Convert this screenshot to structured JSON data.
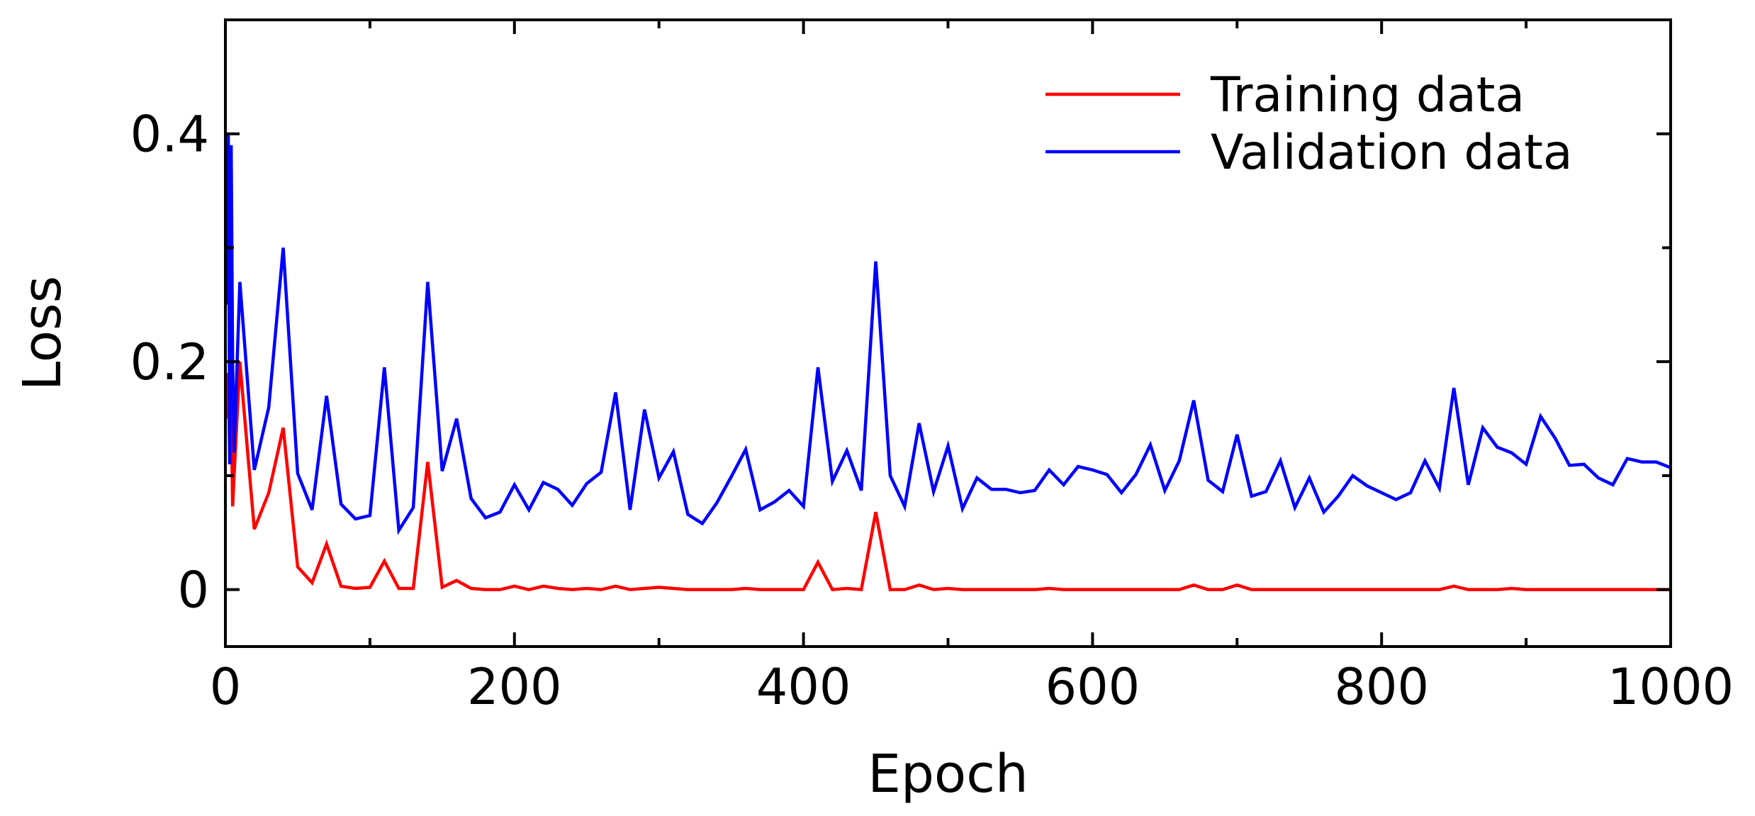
{
  "chart_data": {
    "type": "line",
    "title": "",
    "xlabel": "Epoch",
    "ylabel": "Loss",
    "xlim": [
      0,
      1000
    ],
    "ylim": [
      -0.05,
      0.5
    ],
    "xticks": [
      0,
      200,
      400,
      600,
      800,
      1000
    ],
    "xtick_labels": [
      "0",
      "200",
      "400",
      "600",
      "800",
      "1000"
    ],
    "yticks": [
      0,
      0.2,
      0.4
    ],
    "ytick_labels": [
      "0",
      "0.2",
      "0.4"
    ],
    "grid": false,
    "legend_position": "top-right",
    "series": [
      {
        "name": "Training data",
        "color": "#ff0000",
        "x": [
          1,
          2,
          3,
          4,
          5,
          6,
          10,
          20,
          30,
          40,
          50,
          60,
          70,
          80,
          90,
          100,
          110,
          120,
          130,
          140,
          150,
          160,
          170,
          180,
          190,
          200,
          210,
          220,
          230,
          240,
          250,
          260,
          270,
          280,
          290,
          300,
          310,
          320,
          330,
          340,
          350,
          360,
          370,
          380,
          390,
          400,
          410,
          420,
          430,
          440,
          450,
          460,
          470,
          480,
          490,
          500,
          510,
          520,
          530,
          540,
          550,
          560,
          570,
          580,
          590,
          600,
          610,
          620,
          630,
          640,
          650,
          660,
          670,
          680,
          690,
          700,
          710,
          720,
          730,
          740,
          750,
          760,
          770,
          780,
          790,
          800,
          810,
          820,
          830,
          840,
          850,
          860,
          870,
          880,
          890,
          900,
          910,
          920,
          930,
          940,
          950,
          960,
          970,
          980,
          990,
          1000
        ],
        "y": [
          0.15,
          0.19,
          0.11,
          0.17,
          0.073,
          0.1,
          0.2,
          0.053,
          0.085,
          0.142,
          0.02,
          0.006,
          0.04,
          0.003,
          0.001,
          0.002,
          0.025,
          0.001,
          0.001,
          0.112,
          0.002,
          0.008,
          0.001,
          0.0,
          0.0,
          0.003,
          0.0,
          0.003,
          0.001,
          0.0,
          0.001,
          0.0,
          0.003,
          0.0,
          0.001,
          0.002,
          0.001,
          0.0,
          0.0,
          0.0,
          0.0,
          0.001,
          0.0,
          0.0,
          0.0,
          0.0,
          0.024,
          0.0,
          0.001,
          0.0,
          0.068,
          0.0,
          0.0,
          0.004,
          0.0,
          0.001,
          0.0,
          0.0,
          0.0,
          0.0,
          0.0,
          0.0,
          0.001,
          0.0,
          0.0,
          0.0,
          0.0,
          0.0,
          0.0,
          0.0,
          0.0,
          0.0,
          0.004,
          0.0,
          0.0,
          0.004,
          0.0,
          0.0,
          0.0,
          0.0,
          0.0,
          0.0,
          0.0,
          0.0,
          0.0,
          0.0,
          0.0,
          0.0,
          0.0,
          0.0,
          0.003,
          0.0,
          0.0,
          0.0,
          0.001,
          0.0,
          0.0,
          0.0,
          0.0,
          0.0,
          0.0,
          0.0,
          0.0,
          0.0,
          0.0,
          0.0
        ]
      },
      {
        "name": "Validation data",
        "color": "#0000ff",
        "x": [
          1,
          2,
          3,
          4,
          5,
          6,
          10,
          20,
          30,
          40,
          50,
          60,
          70,
          80,
          90,
          100,
          110,
          120,
          130,
          140,
          150,
          160,
          170,
          180,
          190,
          200,
          210,
          220,
          230,
          240,
          250,
          260,
          270,
          280,
          290,
          300,
          310,
          320,
          330,
          340,
          350,
          360,
          370,
          380,
          390,
          400,
          410,
          420,
          430,
          440,
          450,
          460,
          470,
          480,
          490,
          500,
          510,
          520,
          530,
          540,
          550,
          560,
          570,
          580,
          590,
          600,
          610,
          620,
          630,
          640,
          650,
          660,
          670,
          680,
          690,
          700,
          710,
          720,
          730,
          740,
          750,
          760,
          770,
          780,
          790,
          800,
          810,
          820,
          830,
          840,
          850,
          860,
          870,
          880,
          890,
          900,
          910,
          920,
          930,
          940,
          950,
          960,
          970,
          980,
          990,
          1000
        ],
        "y": [
          0.25,
          0.4,
          0.11,
          0.39,
          0.2,
          0.12,
          0.27,
          0.105,
          0.16,
          0.3,
          0.102,
          0.07,
          0.17,
          0.075,
          0.062,
          0.065,
          0.195,
          0.052,
          0.072,
          0.27,
          0.104,
          0.15,
          0.08,
          0.063,
          0.068,
          0.092,
          0.07,
          0.094,
          0.088,
          0.074,
          0.093,
          0.103,
          0.173,
          0.07,
          0.158,
          0.098,
          0.121,
          0.066,
          0.058,
          0.076,
          0.099,
          0.123,
          0.07,
          0.077,
          0.087,
          0.073,
          0.195,
          0.095,
          0.122,
          0.087,
          0.288,
          0.1,
          0.073,
          0.146,
          0.086,
          0.126,
          0.071,
          0.098,
          0.088,
          0.088,
          0.085,
          0.087,
          0.105,
          0.092,
          0.108,
          0.105,
          0.101,
          0.085,
          0.101,
          0.127,
          0.087,
          0.113,
          0.166,
          0.096,
          0.086,
          0.136,
          0.082,
          0.086,
          0.113,
          0.072,
          0.098,
          0.068,
          0.082,
          0.1,
          0.091,
          0.085,
          0.079,
          0.085,
          0.113,
          0.089,
          0.177,
          0.092,
          0.142,
          0.125,
          0.12,
          0.11,
          0.152,
          0.133,
          0.109,
          0.11,
          0.098,
          0.092,
          0.115,
          0.112,
          0.112,
          0.107
        ]
      }
    ]
  }
}
